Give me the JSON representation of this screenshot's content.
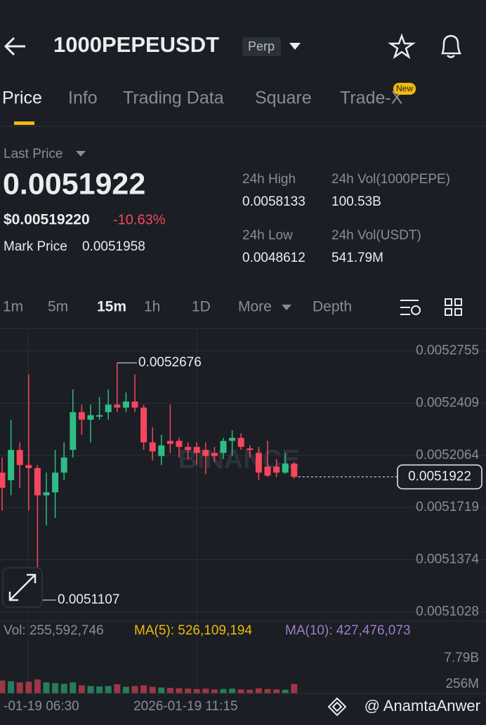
{
  "header": {
    "symbol": "1000PEPEUSDT",
    "badge": "Perp"
  },
  "tabs": {
    "items": [
      "Price",
      "Info",
      "Trading Data",
      "Square",
      "Trade-X"
    ],
    "new_badge": "New"
  },
  "stats": {
    "last_price_label": "Last Price",
    "last_price": "0.0051922",
    "usd_price": "$0.00519220",
    "change": "-10.63%",
    "mark_price_label": "Mark Price",
    "mark_price": "0.0051958",
    "items": [
      {
        "label": "24h High",
        "value": "0.0058133"
      },
      {
        "label": "24h Vol(1000PEPE)",
        "value": "100.53B"
      },
      {
        "label": "24h Low",
        "value": "0.0048612"
      },
      {
        "label": "24h Vol(USDT)",
        "value": "541.79M"
      }
    ]
  },
  "intervals": [
    "1m",
    "5m",
    "15m",
    "1h",
    "1D",
    "More",
    "Depth"
  ],
  "price_chart": {
    "type": "candlestick",
    "watermark": "BINANCE",
    "up_color": "#2ebd85",
    "down_color": "#f6465d",
    "ylim": [
      0.0050968,
      0.0052894
    ],
    "yticks": [
      0.0052755,
      0.0052409,
      0.0052064,
      0.0051719,
      0.0051374,
      0.0051028
    ],
    "current_price": 0.0051922,
    "high_label": 0.0052676,
    "low_label": 0.0051107,
    "candles": [
      {
        "open": 0.005195,
        "high": 0.005205,
        "low": 0.00517,
        "close": 0.005185
      },
      {
        "open": 0.00519,
        "high": 0.00523,
        "low": 0.00518,
        "close": 0.00521
      },
      {
        "open": 0.00521,
        "high": 0.005215,
        "low": 0.005185,
        "close": 0.0052
      },
      {
        "open": 0.0052,
        "high": 0.00526,
        "low": 0.00517,
        "close": 0.005198
      },
      {
        "open": 0.005198,
        "high": 0.0052,
        "low": 0.0051107,
        "close": 0.00518
      },
      {
        "open": 0.00518,
        "high": 0.005195,
        "low": 0.00516,
        "close": 0.005182
      },
      {
        "open": 0.005182,
        "high": 0.00521,
        "low": 0.005165,
        "close": 0.005195
      },
      {
        "open": 0.005195,
        "high": 0.005215,
        "low": 0.00519,
        "close": 0.005205
      },
      {
        "open": 0.00521,
        "high": 0.00525,
        "low": 0.005205,
        "close": 0.005235
      },
      {
        "open": 0.005235,
        "high": 0.00524,
        "low": 0.00522,
        "close": 0.00523
      },
      {
        "open": 0.00523,
        "high": 0.00524,
        "low": 0.005215,
        "close": 0.005233
      },
      {
        "open": 0.005232,
        "high": 0.005245,
        "low": 0.00523,
        "close": 0.005233
      },
      {
        "open": 0.005235,
        "high": 0.00525,
        "low": 0.00523,
        "close": 0.00524
      },
      {
        "open": 0.00524,
        "high": 0.0052676,
        "low": 0.005235,
        "close": 0.005238
      },
      {
        "open": 0.005238,
        "high": 0.005248,
        "low": 0.005235,
        "close": 0.005242
      },
      {
        "open": 0.005242,
        "high": 0.00526,
        "low": 0.005235,
        "close": 0.005238
      },
      {
        "open": 0.005238,
        "high": 0.00524,
        "low": 0.00521,
        "close": 0.005215
      },
      {
        "open": 0.005215,
        "high": 0.005225,
        "low": 0.005203,
        "close": 0.005209
      },
      {
        "open": 0.005206,
        "high": 0.00522,
        "low": 0.0052,
        "close": 0.005213
      },
      {
        "open": 0.005216,
        "high": 0.00524,
        "low": 0.005208,
        "close": 0.005214
      },
      {
        "open": 0.005216,
        "high": 0.005218,
        "low": 0.005205,
        "close": 0.005212
      },
      {
        "open": 0.005212,
        "high": 0.005215,
        "low": 0.005204,
        "close": 0.00521
      },
      {
        "open": 0.005212,
        "high": 0.005215,
        "low": 0.0052,
        "close": 0.005208
      },
      {
        "open": 0.00521,
        "high": 0.005215,
        "low": 0.005194,
        "close": 0.005206
      },
      {
        "open": 0.005208,
        "high": 0.005212,
        "low": 0.005202,
        "close": 0.005206
      },
      {
        "open": 0.005208,
        "high": 0.005218,
        "low": 0.005204,
        "close": 0.005216
      },
      {
        "open": 0.005216,
        "high": 0.005223,
        "low": 0.005206,
        "close": 0.005218
      },
      {
        "open": 0.005218,
        "high": 0.005221,
        "low": 0.00521,
        "close": 0.005212
      },
      {
        "open": 0.005211,
        "high": 0.005213,
        "low": 0.005205,
        "close": 0.00521
      },
      {
        "open": 0.005208,
        "high": 0.005212,
        "low": 0.00519,
        "close": 0.005195
      },
      {
        "open": 0.005199,
        "high": 0.005216,
        "low": 0.005192,
        "close": 0.005193
      },
      {
        "open": 0.005199,
        "high": 0.005204,
        "low": 0.005192,
        "close": 0.005195
      },
      {
        "open": 0.005195,
        "high": 0.005208,
        "low": 0.005194,
        "close": 0.005201
      },
      {
        "open": 0.005201,
        "high": 0.005202,
        "low": 0.005191,
        "close": 0.0051922
      }
    ]
  },
  "volume": {
    "vol_label": "Vol: 255,592,746",
    "ma5": "MA(5): 526,109,194",
    "ma10": "MA(10): 427,476,073",
    "scale_labels": [
      "7.79B",
      "256M"
    ],
    "ylim": [
      0,
      1200000000
    ],
    "values": [
      350000000,
      330000000,
      300000000,
      320000000,
      380000000,
      300000000,
      280000000,
      260000000,
      300000000,
      220000000,
      200000000,
      190000000,
      200000000,
      250000000,
      180000000,
      200000000,
      220000000,
      180000000,
      160000000,
      150000000,
      140000000,
      130000000,
      120000000,
      130000000,
      110000000,
      120000000,
      130000000,
      110000000,
      100000000,
      140000000,
      120000000,
      110000000,
      100000000,
      255592746
    ]
  },
  "time_labels": [
    "-01-19 06:30",
    "2026-01-19 11:15"
  ],
  "credit": "@ AnamtaAnwer"
}
